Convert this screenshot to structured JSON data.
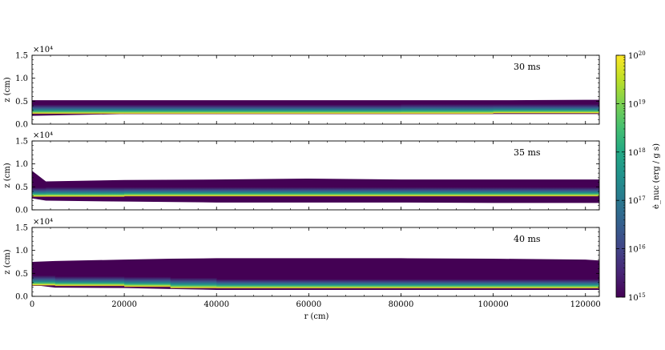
{
  "chart_data": {
    "type": "heatmap",
    "colormap": "viridis",
    "panels": [
      {
        "label": "30 ms",
        "ylabel": "z  (cm)",
        "y_multiplier": "×10⁴",
        "yticks": [
          "0.0",
          "0.5",
          "1.0",
          "1.5"
        ],
        "ylim": [
          0,
          1.5
        ],
        "profile": {
          "r": [
            0,
            20000,
            40000,
            60000,
            80000,
            100000,
            120000,
            123000
          ],
          "z_bottom": [
            0.18,
            0.22,
            0.22,
            0.22,
            0.22,
            0.22,
            0.22,
            0.22
          ],
          "z_peak": [
            0.27,
            0.27,
            0.27,
            0.27,
            0.27,
            0.28,
            0.28,
            0.28
          ],
          "z_top": [
            0.52,
            0.52,
            0.52,
            0.52,
            0.52,
            0.52,
            0.53,
            0.53
          ]
        }
      },
      {
        "label": "35 ms",
        "ylabel": "z  (cm)",
        "y_multiplier": "×10⁴",
        "yticks": [
          "0.0",
          "0.5",
          "1.0",
          "1.5"
        ],
        "ylim": [
          0,
          1.5
        ],
        "profile": {
          "r": [
            0,
            3000,
            20000,
            40000,
            60000,
            80000,
            100000,
            120000,
            123000
          ],
          "z_bottom": [
            0.25,
            0.2,
            0.18,
            0.16,
            0.16,
            0.16,
            0.15,
            0.15,
            0.15
          ],
          "z_peak": [
            0.33,
            0.33,
            0.34,
            0.34,
            0.34,
            0.34,
            0.34,
            0.34,
            0.34
          ],
          "z_top": [
            0.85,
            0.62,
            0.65,
            0.66,
            0.68,
            0.66,
            0.66,
            0.66,
            0.66
          ]
        }
      },
      {
        "label": "40 ms",
        "ylabel": "z  (cm)",
        "y_multiplier": "×10⁴",
        "yticks": [
          "0.0",
          "0.5",
          "1.0",
          "1.5"
        ],
        "ylim": [
          0,
          1.5
        ],
        "profile": {
          "r": [
            0,
            5000,
            20000,
            30000,
            40000,
            60000,
            80000,
            100000,
            120000,
            123000
          ],
          "z_bottom": [
            0.25,
            0.19,
            0.18,
            0.16,
            0.14,
            0.14,
            0.14,
            0.14,
            0.14,
            0.14
          ],
          "z_peak": [
            0.3,
            0.28,
            0.27,
            0.25,
            0.22,
            0.22,
            0.22,
            0.22,
            0.22,
            0.22
          ],
          "z_top": [
            0.75,
            0.77,
            0.8,
            0.82,
            0.83,
            0.83,
            0.83,
            0.82,
            0.8,
            0.78
          ]
        }
      }
    ],
    "x": {
      "label": "r  (cm)",
      "ticks": [
        "0",
        "20000",
        "40000",
        "60000",
        "80000",
        "100000",
        "120000"
      ],
      "tick_values": [
        0,
        20000,
        40000,
        60000,
        80000,
        100000,
        120000
      ],
      "lim": [
        0,
        123000
      ]
    },
    "colorbar": {
      "label": "ė_nuc  (erg / g s)",
      "scale": "log",
      "range": [
        1000000000000000.0,
        1e+20
      ],
      "tick_values": [
        1000000000000000.0,
        1e+16,
        1e+17,
        1e+18,
        1e+19,
        1e+20
      ],
      "tick_exponents": [
        "15",
        "16",
        "17",
        "18",
        "19",
        "20"
      ]
    },
    "grid": false,
    "legend": "none"
  }
}
